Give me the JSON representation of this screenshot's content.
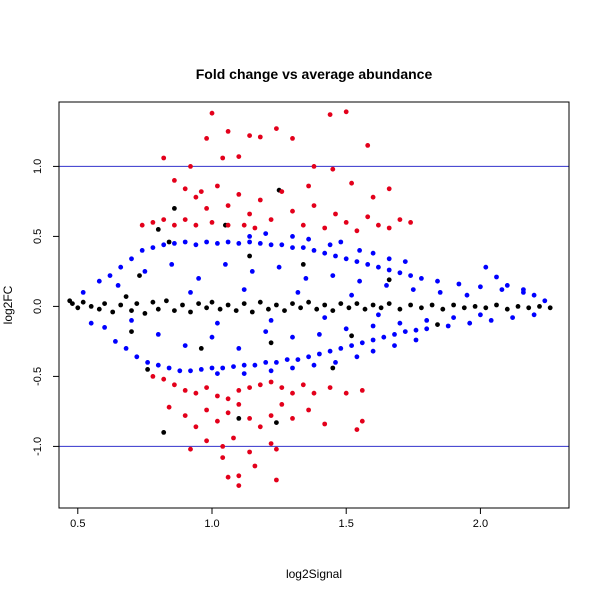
{
  "chart_data": {
    "type": "scatter",
    "title": "Fold change vs average abundance",
    "xlabel": "log2Signal",
    "ylabel": "log2FC",
    "xlim": [
      0.43,
      2.33
    ],
    "ylim": [
      -1.44,
      1.46
    ],
    "x_ticks": [
      0.5,
      1.0,
      1.5,
      2.0
    ],
    "x_tick_labels": [
      "0.5",
      "1.0",
      "1.5",
      "2.0"
    ],
    "y_ticks": [
      -1.0,
      -0.5,
      0.0,
      0.5,
      1.0
    ],
    "y_tick_labels": [
      "-1.0",
      "-0.5",
      "0.0",
      "0.5",
      "1.0"
    ],
    "reference_lines": [
      {
        "axis": "y",
        "value": 1.0,
        "color": "#3333cc"
      },
      {
        "axis": "y",
        "value": -1.0,
        "color": "#3333cc"
      }
    ],
    "series": [
      {
        "color": "#000000",
        "points": [
          [
            0.47,
            0.04
          ],
          [
            0.48,
            0.02
          ],
          [
            0.5,
            -0.01
          ],
          [
            0.52,
            0.03
          ],
          [
            0.55,
            0.0
          ],
          [
            0.58,
            -0.02
          ],
          [
            0.6,
            0.02
          ],
          [
            0.63,
            -0.04
          ],
          [
            0.66,
            0.01
          ],
          [
            0.7,
            -0.03
          ],
          [
            0.72,
            0.02
          ],
          [
            0.75,
            -0.05
          ],
          [
            0.78,
            0.03
          ],
          [
            0.8,
            -0.02
          ],
          [
            0.83,
            0.04
          ],
          [
            0.86,
            -0.03
          ],
          [
            0.89,
            0.01
          ],
          [
            0.92,
            -0.04
          ],
          [
            0.95,
            0.02
          ],
          [
            0.98,
            -0.01
          ],
          [
            1.0,
            0.03
          ],
          [
            1.03,
            -0.02
          ],
          [
            1.06,
            0.01
          ],
          [
            1.09,
            -0.03
          ],
          [
            1.12,
            0.02
          ],
          [
            1.15,
            -0.04
          ],
          [
            1.18,
            0.03
          ],
          [
            1.21,
            -0.02
          ],
          [
            1.24,
            0.01
          ],
          [
            1.27,
            -0.03
          ],
          [
            1.3,
            0.02
          ],
          [
            1.33,
            -0.01
          ],
          [
            1.36,
            0.03
          ],
          [
            1.39,
            -0.02
          ],
          [
            1.42,
            0.01
          ],
          [
            1.45,
            -0.03
          ],
          [
            1.48,
            0.02
          ],
          [
            1.51,
            -0.01
          ],
          [
            1.54,
            0.02
          ],
          [
            1.57,
            -0.02
          ],
          [
            1.6,
            0.01
          ],
          [
            1.63,
            -0.01
          ],
          [
            1.66,
            0.02
          ],
          [
            1.7,
            -0.02
          ],
          [
            1.74,
            0.01
          ],
          [
            1.78,
            -0.01
          ],
          [
            1.82,
            0.01
          ],
          [
            1.86,
            -0.02
          ],
          [
            1.9,
            0.01
          ],
          [
            1.94,
            -0.01
          ],
          [
            1.98,
            0.0
          ],
          [
            2.02,
            -0.01
          ],
          [
            2.06,
            0.01
          ],
          [
            2.1,
            -0.02
          ],
          [
            2.14,
            0.0
          ],
          [
            2.18,
            -0.01
          ],
          [
            2.22,
            0.0
          ],
          [
            2.26,
            -0.01
          ],
          [
            0.84,
            0.46
          ],
          [
            0.86,
            0.7
          ],
          [
            0.8,
            0.55
          ],
          [
            1.05,
            0.58
          ],
          [
            0.76,
            -0.45
          ],
          [
            0.82,
            -0.9
          ],
          [
            1.1,
            -0.8
          ],
          [
            1.25,
            0.83
          ],
          [
            1.24,
            -0.83
          ],
          [
            1.45,
            -0.44
          ],
          [
            0.68,
            0.07
          ],
          [
            0.7,
            -0.18
          ],
          [
            0.73,
            0.22
          ],
          [
            0.96,
            -0.3
          ],
          [
            1.14,
            0.36
          ],
          [
            1.22,
            -0.26
          ],
          [
            1.34,
            0.3
          ],
          [
            1.52,
            -0.21
          ],
          [
            1.66,
            0.19
          ],
          [
            1.84,
            -0.13
          ]
        ]
      },
      {
        "color": "#0000ff",
        "points": [
          [
            0.52,
            0.1
          ],
          [
            0.55,
            -0.12
          ],
          [
            0.58,
            0.18
          ],
          [
            0.6,
            -0.15
          ],
          [
            0.62,
            0.22
          ],
          [
            0.64,
            -0.25
          ],
          [
            0.66,
            0.28
          ],
          [
            0.68,
            -0.3
          ],
          [
            0.7,
            0.34
          ],
          [
            0.72,
            -0.36
          ],
          [
            0.74,
            0.4
          ],
          [
            0.76,
            -0.4
          ],
          [
            0.78,
            0.42
          ],
          [
            0.8,
            -0.42
          ],
          [
            0.82,
            0.44
          ],
          [
            0.84,
            -0.44
          ],
          [
            0.86,
            0.45
          ],
          [
            0.88,
            -0.46
          ],
          [
            0.9,
            0.46
          ],
          [
            0.92,
            -0.46
          ],
          [
            0.94,
            0.44
          ],
          [
            0.96,
            -0.45
          ],
          [
            0.98,
            0.46
          ],
          [
            1.0,
            -0.44
          ],
          [
            1.02,
            0.45
          ],
          [
            1.04,
            -0.44
          ],
          [
            1.06,
            0.46
          ],
          [
            1.08,
            -0.43
          ],
          [
            1.1,
            0.45
          ],
          [
            1.12,
            -0.42
          ],
          [
            1.14,
            0.46
          ],
          [
            1.16,
            -0.42
          ],
          [
            1.18,
            0.45
          ],
          [
            1.2,
            -0.4
          ],
          [
            1.22,
            0.44
          ],
          [
            1.24,
            -0.4
          ],
          [
            1.26,
            0.44
          ],
          [
            1.28,
            -0.38
          ],
          [
            1.3,
            0.42
          ],
          [
            1.32,
            -0.38
          ],
          [
            1.34,
            0.42
          ],
          [
            1.36,
            -0.36
          ],
          [
            1.38,
            0.4
          ],
          [
            1.4,
            -0.34
          ],
          [
            1.42,
            0.38
          ],
          [
            1.44,
            -0.32
          ],
          [
            1.46,
            0.36
          ],
          [
            1.48,
            -0.3
          ],
          [
            1.5,
            0.34
          ],
          [
            1.52,
            -0.28
          ],
          [
            1.54,
            0.32
          ],
          [
            1.56,
            -0.26
          ],
          [
            1.58,
            0.3
          ],
          [
            1.6,
            -0.24
          ],
          [
            1.62,
            0.28
          ],
          [
            1.64,
            -0.22
          ],
          [
            1.66,
            0.26
          ],
          [
            1.68,
            -0.2
          ],
          [
            1.7,
            0.24
          ],
          [
            1.72,
            -0.18
          ],
          [
            1.74,
            0.22
          ],
          [
            1.76,
            -0.17
          ],
          [
            1.78,
            0.2
          ],
          [
            1.8,
            -0.16
          ],
          [
            1.84,
            0.18
          ],
          [
            1.88,
            -0.14
          ],
          [
            1.92,
            0.16
          ],
          [
            1.96,
            -0.12
          ],
          [
            2.0,
            0.14
          ],
          [
            2.04,
            -0.1
          ],
          [
            2.08,
            0.12
          ],
          [
            2.12,
            -0.08
          ],
          [
            2.16,
            0.1
          ],
          [
            2.2,
            -0.06
          ],
          [
            2.24,
            0.04
          ],
          [
            0.65,
            0.15
          ],
          [
            0.7,
            -0.1
          ],
          [
            0.75,
            0.25
          ],
          [
            0.8,
            -0.2
          ],
          [
            0.85,
            0.3
          ],
          [
            0.9,
            -0.28
          ],
          [
            0.95,
            0.2
          ],
          [
            1.0,
            -0.22
          ],
          [
            1.05,
            0.3
          ],
          [
            1.1,
            -0.3
          ],
          [
            1.15,
            0.25
          ],
          [
            1.2,
            -0.18
          ],
          [
            1.25,
            0.28
          ],
          [
            1.3,
            -0.22
          ],
          [
            1.35,
            0.2
          ],
          [
            1.4,
            -0.2
          ],
          [
            1.45,
            0.22
          ],
          [
            1.5,
            -0.16
          ],
          [
            1.55,
            0.18
          ],
          [
            1.6,
            -0.14
          ],
          [
            1.65,
            0.15
          ],
          [
            1.7,
            -0.12
          ],
          [
            1.75,
            0.12
          ],
          [
            1.8,
            -0.1
          ],
          [
            1.85,
            0.1
          ],
          [
            1.9,
            -0.08
          ],
          [
            1.95,
            0.08
          ],
          [
            2.0,
            -0.06
          ],
          [
            0.92,
            0.1
          ],
          [
            1.02,
            -0.12
          ],
          [
            1.12,
            0.12
          ],
          [
            1.22,
            -0.1
          ],
          [
            1.32,
            0.1
          ],
          [
            1.42,
            -0.08
          ],
          [
            1.52,
            0.08
          ],
          [
            1.62,
            -0.06
          ],
          [
            1.14,
            0.5
          ],
          [
            1.2,
            0.52
          ],
          [
            1.3,
            0.5
          ],
          [
            1.36,
            0.48
          ],
          [
            1.44,
            0.44
          ],
          [
            1.48,
            0.46
          ],
          [
            1.55,
            0.4
          ],
          [
            1.6,
            0.38
          ],
          [
            1.66,
            0.34
          ],
          [
            1.72,
            0.32
          ],
          [
            1.02,
            -0.48
          ],
          [
            1.12,
            -0.48
          ],
          [
            1.22,
            -0.46
          ],
          [
            1.3,
            -0.44
          ],
          [
            1.38,
            -0.42
          ],
          [
            1.46,
            -0.4
          ],
          [
            1.54,
            -0.36
          ],
          [
            1.6,
            -0.32
          ],
          [
            1.68,
            -0.28
          ],
          [
            1.76,
            -0.24
          ],
          [
            2.02,
            0.28
          ],
          [
            2.06,
            0.21
          ],
          [
            2.1,
            0.15
          ],
          [
            2.16,
            0.12
          ],
          [
            2.2,
            0.08
          ]
        ]
      },
      {
        "color": "#e3001b",
        "points": [
          [
            0.82,
            1.06
          ],
          [
            0.92,
            1.0
          ],
          [
            0.96,
            0.82
          ],
          [
            0.98,
            1.2
          ],
          [
            1.0,
            1.38
          ],
          [
            1.04,
            1.06
          ],
          [
            1.06,
            1.25
          ],
          [
            1.1,
            1.07
          ],
          [
            1.14,
            1.22
          ],
          [
            1.18,
            1.21
          ],
          [
            1.24,
            1.27
          ],
          [
            1.3,
            1.2
          ],
          [
            1.44,
            1.37
          ],
          [
            1.5,
            1.39
          ],
          [
            1.58,
            1.15
          ],
          [
            1.38,
            1.0
          ],
          [
            1.45,
            0.98
          ],
          [
            0.86,
            0.9
          ],
          [
            0.9,
            0.84
          ],
          [
            0.94,
            0.78
          ],
          [
            0.98,
            0.7
          ],
          [
            1.02,
            0.86
          ],
          [
            1.06,
            0.72
          ],
          [
            1.1,
            0.8
          ],
          [
            1.14,
            0.66
          ],
          [
            1.18,
            0.76
          ],
          [
            1.22,
            0.62
          ],
          [
            1.26,
            0.82
          ],
          [
            1.3,
            0.68
          ],
          [
            1.34,
            0.58
          ],
          [
            1.38,
            0.72
          ],
          [
            1.42,
            0.56
          ],
          [
            1.46,
            0.66
          ],
          [
            1.5,
            0.6
          ],
          [
            1.54,
            0.54
          ],
          [
            1.58,
            0.64
          ],
          [
            1.62,
            0.58
          ],
          [
            1.66,
            0.56
          ],
          [
            1.7,
            0.62
          ],
          [
            1.74,
            0.6
          ],
          [
            1.6,
            0.78
          ],
          [
            1.52,
            0.88
          ],
          [
            1.66,
            0.84
          ],
          [
            1.36,
            0.86
          ],
          [
            0.74,
            0.58
          ],
          [
            0.78,
            0.6
          ],
          [
            0.82,
            0.62
          ],
          [
            0.86,
            0.58
          ],
          [
            0.9,
            0.62
          ],
          [
            0.94,
            0.58
          ],
          [
            1.0,
            0.6
          ],
          [
            1.06,
            0.58
          ],
          [
            1.12,
            0.58
          ],
          [
            1.16,
            0.56
          ],
          [
            0.78,
            -0.5
          ],
          [
            0.82,
            -0.52
          ],
          [
            0.86,
            -0.56
          ],
          [
            0.9,
            -0.6
          ],
          [
            0.94,
            -0.62
          ],
          [
            0.98,
            -0.58
          ],
          [
            1.02,
            -0.64
          ],
          [
            1.06,
            -0.66
          ],
          [
            1.1,
            -0.6
          ],
          [
            1.14,
            -0.58
          ],
          [
            1.18,
            -0.56
          ],
          [
            1.22,
            -0.54
          ],
          [
            1.26,
            -0.58
          ],
          [
            1.3,
            -0.62
          ],
          [
            1.34,
            -0.56
          ],
          [
            1.38,
            -0.62
          ],
          [
            1.44,
            -0.58
          ],
          [
            1.5,
            -0.62
          ],
          [
            1.56,
            -0.6
          ],
          [
            0.84,
            -0.72
          ],
          [
            0.9,
            -0.78
          ],
          [
            0.94,
            -0.86
          ],
          [
            0.98,
            -0.74
          ],
          [
            1.02,
            -0.82
          ],
          [
            1.06,
            -0.76
          ],
          [
            1.1,
            -0.7
          ],
          [
            1.14,
            -0.8
          ],
          [
            1.18,
            -0.86
          ],
          [
            1.22,
            -0.78
          ],
          [
            1.26,
            -0.7
          ],
          [
            1.3,
            -0.8
          ],
          [
            1.36,
            -0.74
          ],
          [
            1.42,
            -0.84
          ],
          [
            1.54,
            -0.88
          ],
          [
            1.56,
            -0.82
          ],
          [
            0.92,
            -1.02
          ],
          [
            0.98,
            -0.96
          ],
          [
            1.04,
            -1.0
          ],
          [
            1.08,
            -0.94
          ],
          [
            1.14,
            -1.04
          ],
          [
            1.22,
            -0.98
          ],
          [
            1.24,
            -1.02
          ],
          [
            1.06,
            -1.22
          ],
          [
            1.1,
            -1.21
          ],
          [
            1.1,
            -1.28
          ],
          [
            1.16,
            -1.14
          ],
          [
            1.24,
            -1.24
          ],
          [
            1.04,
            -1.08
          ]
        ]
      }
    ]
  }
}
